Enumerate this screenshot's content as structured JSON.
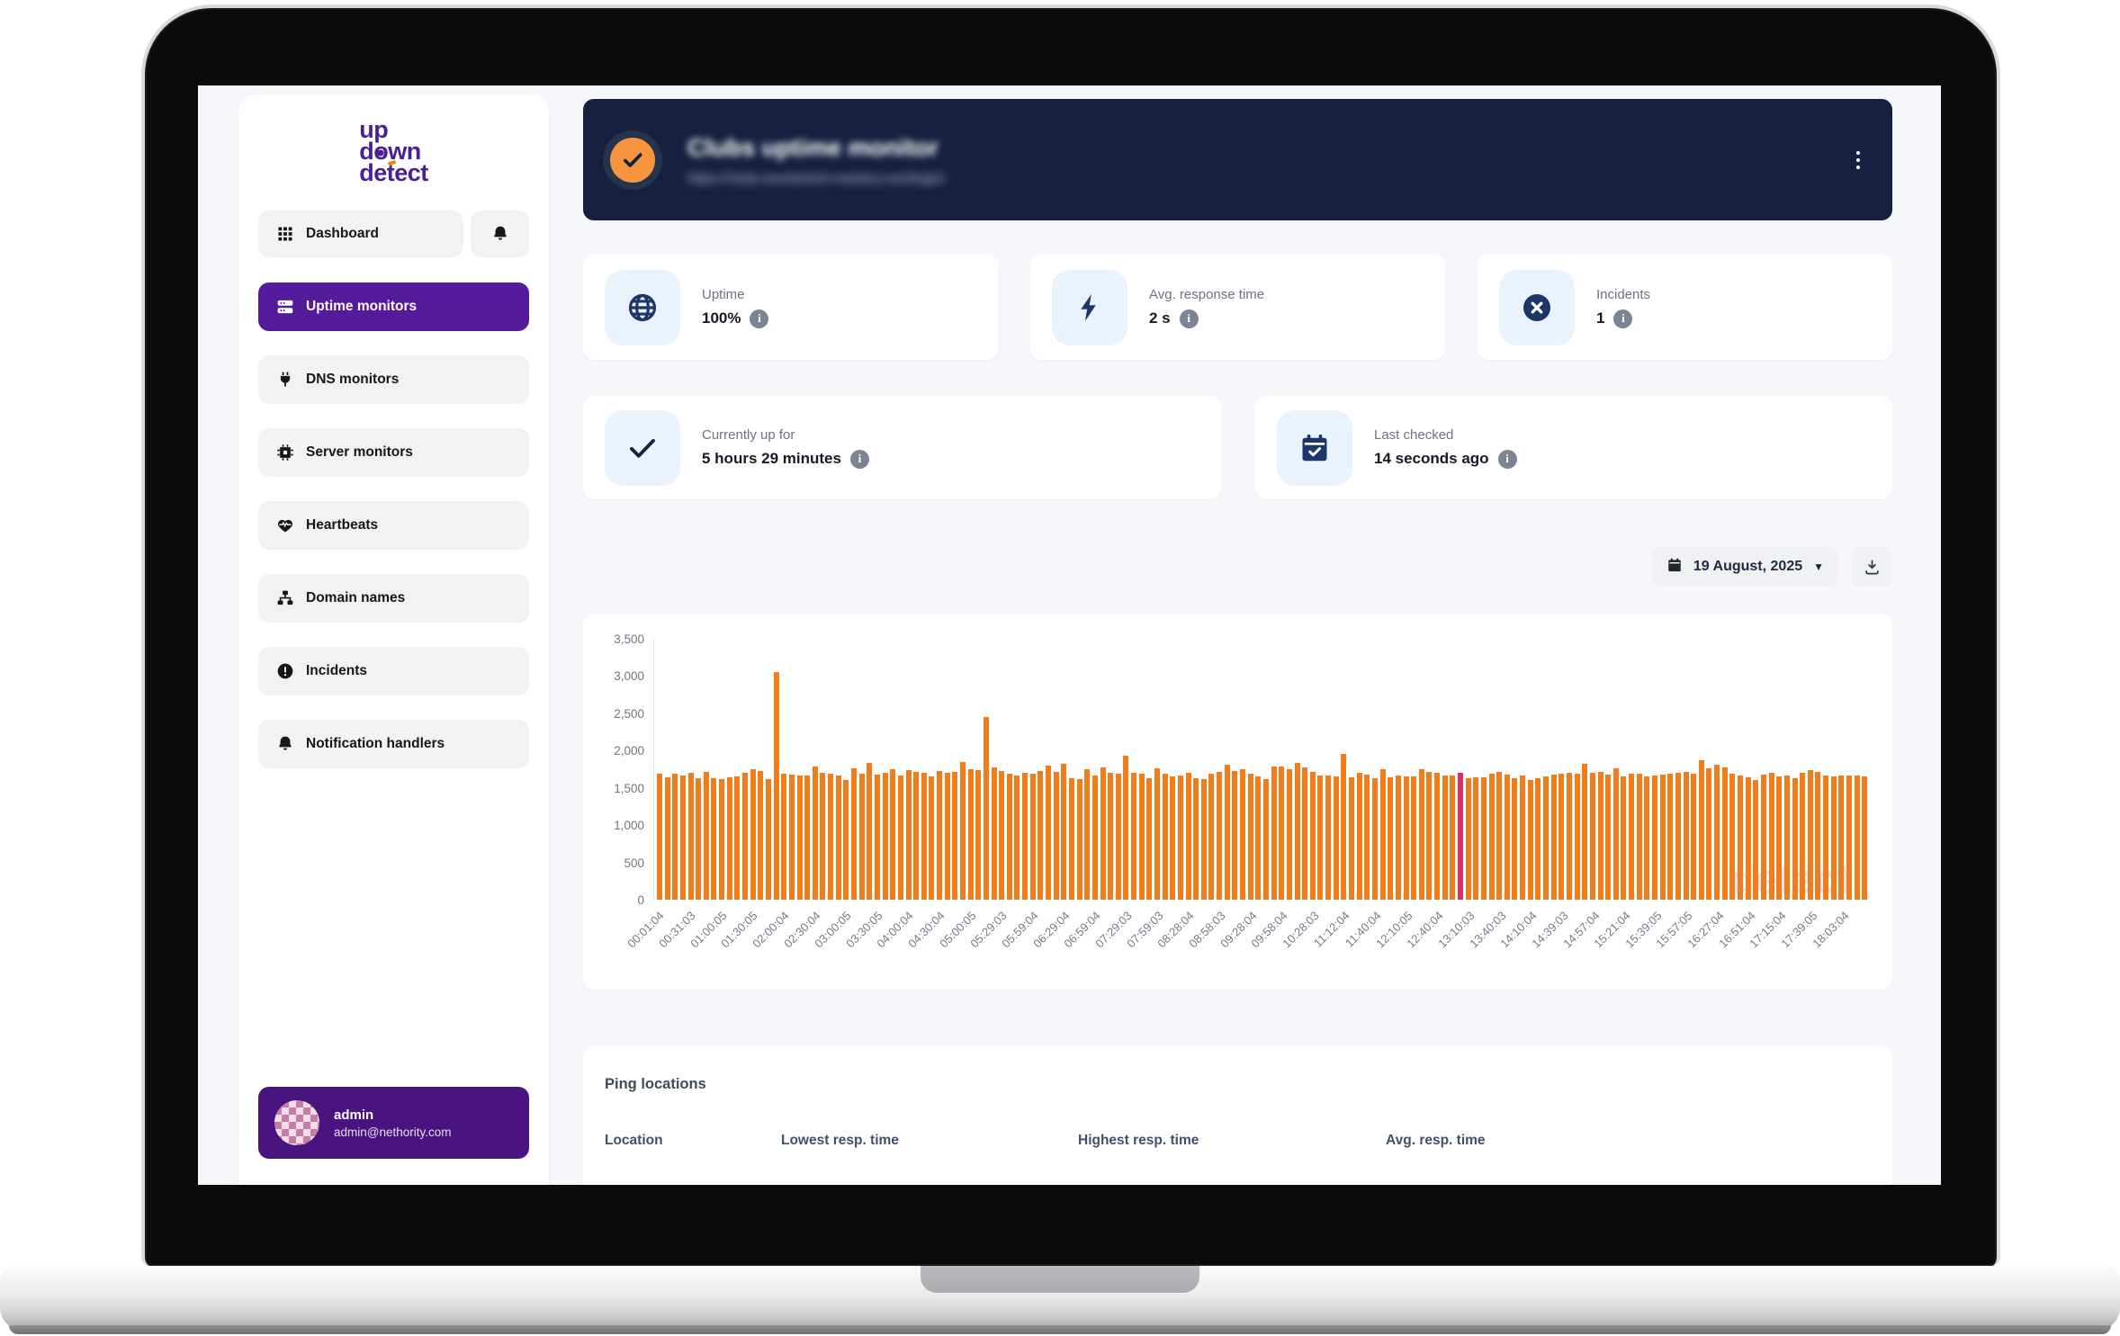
{
  "app": {
    "logo_line1": "up",
    "logo_line2": "down",
    "logo_line3": "detect"
  },
  "sidebar": {
    "dashboard_label": "Dashboard",
    "items": [
      {
        "label": "Uptime monitors",
        "icon": "server-stack-icon",
        "active": true
      },
      {
        "label": "DNS monitors",
        "icon": "plug-icon",
        "active": false
      },
      {
        "label": "Server monitors",
        "icon": "cpu-icon",
        "active": false
      },
      {
        "label": "Heartbeats",
        "icon": "heart-icon",
        "active": false
      },
      {
        "label": "Domain names",
        "icon": "sitemap-icon",
        "active": false
      },
      {
        "label": "Incidents",
        "icon": "alert-circle-icon",
        "active": false
      },
      {
        "label": "Notification handlers",
        "icon": "bell-icon",
        "active": false
      }
    ],
    "user": {
      "name": "admin",
      "email": "admin@nethority.com"
    }
  },
  "header": {
    "title": "Clubs uptime monitor",
    "url": "https://clubs.investment-mastery.com/login/"
  },
  "stats": [
    {
      "label": "Uptime",
      "value": "100%",
      "icon": "globe-icon"
    },
    {
      "label": "Avg. response time",
      "value": "2 s",
      "icon": "bolt-icon"
    },
    {
      "label": "Incidents",
      "value": "1",
      "icon": "x-circle-icon"
    }
  ],
  "status_cards": [
    {
      "label": "Currently up for",
      "value": "5 hours 29 minutes",
      "icon": "check-icon"
    },
    {
      "label": "Last checked",
      "value": "14 seconds ago",
      "icon": "calendar-check-icon"
    }
  ],
  "toolbar": {
    "date_label": "19 August, 2025"
  },
  "chart_data": {
    "type": "bar",
    "title": "",
    "xlabel": "",
    "ylabel": "",
    "ylim": [
      0,
      3500
    ],
    "yticks": [
      0,
      500,
      1000,
      1500,
      2000,
      2500,
      3000,
      3500
    ],
    "grid": false,
    "bar_color": "#f07c1c",
    "highlight_index": 103,
    "highlight_color": "#d6336c",
    "watermark": "detect",
    "x_tick_labels": [
      "00:01:04",
      "00:31:03",
      "01:00:05",
      "01:30:05",
      "02:00:04",
      "02:30:04",
      "03:00:05",
      "03:30:05",
      "04:00:04",
      "04:30:04",
      "05:00:05",
      "05:29:03",
      "05:59:04",
      "06:29:04",
      "06:59:04",
      "07:29:03",
      "07:59:03",
      "08:28:04",
      "08:58:03",
      "09:28:04",
      "09:58:04",
      "10:28:03",
      "11:12:04",
      "11:40:04",
      "12:10:05",
      "12:40:04",
      "13:10:03",
      "13:40:03",
      "14:10:04",
      "14:39:03",
      "14:57:04",
      "15:21:04",
      "15:39:05",
      "15:57:05",
      "16:27:04",
      "16:51:04",
      "17:15:04",
      "17:39:05",
      "18:03:04"
    ],
    "bars_per_label": 4,
    "values": [
      1690,
      1640,
      1685,
      1670,
      1700,
      1635,
      1710,
      1630,
      1615,
      1640,
      1655,
      1700,
      1745,
      1725,
      1615,
      3050,
      1695,
      1680,
      1665,
      1670,
      1785,
      1700,
      1690,
      1660,
      1605,
      1765,
      1685,
      1830,
      1675,
      1700,
      1745,
      1665,
      1740,
      1720,
      1700,
      1655,
      1730,
      1700,
      1715,
      1850,
      1745,
      1735,
      2450,
      1780,
      1730,
      1685,
      1660,
      1705,
      1695,
      1725,
      1800,
      1715,
      1820,
      1625,
      1620,
      1750,
      1665,
      1775,
      1700,
      1690,
      1930,
      1705,
      1690,
      1625,
      1760,
      1685,
      1650,
      1670,
      1705,
      1625,
      1615,
      1685,
      1720,
      1805,
      1730,
      1745,
      1695,
      1655,
      1620,
      1790,
      1785,
      1750,
      1840,
      1775,
      1720,
      1660,
      1670,
      1655,
      1950,
      1640,
      1705,
      1675,
      1625,
      1755,
      1640,
      1665,
      1650,
      1655,
      1755,
      1720,
      1700,
      1670,
      1660,
      1700,
      1630,
      1640,
      1645,
      1690,
      1715,
      1680,
      1625,
      1665,
      1605,
      1630,
      1650,
      1675,
      1690,
      1705,
      1685,
      1825,
      1700,
      1720,
      1680,
      1765,
      1650,
      1695,
      1685,
      1655,
      1665,
      1680,
      1690,
      1700,
      1715,
      1690,
      1870,
      1760,
      1805,
      1780,
      1690,
      1660,
      1640,
      1610,
      1680,
      1700,
      1655,
      1670,
      1630,
      1700,
      1740,
      1720,
      1670,
      1650,
      1660,
      1665,
      1670,
      1650
    ]
  },
  "ping": {
    "title": "Ping locations",
    "columns": [
      "Location",
      "Lowest resp. time",
      "Highest resp. time",
      "Avg. resp. time"
    ]
  },
  "colors": {
    "accent_purple": "#541b9b",
    "navy": "#15213f",
    "orange": "#f07c1c",
    "highlight_pink": "#d6336c",
    "tile_blue": "#eaf2fe"
  }
}
